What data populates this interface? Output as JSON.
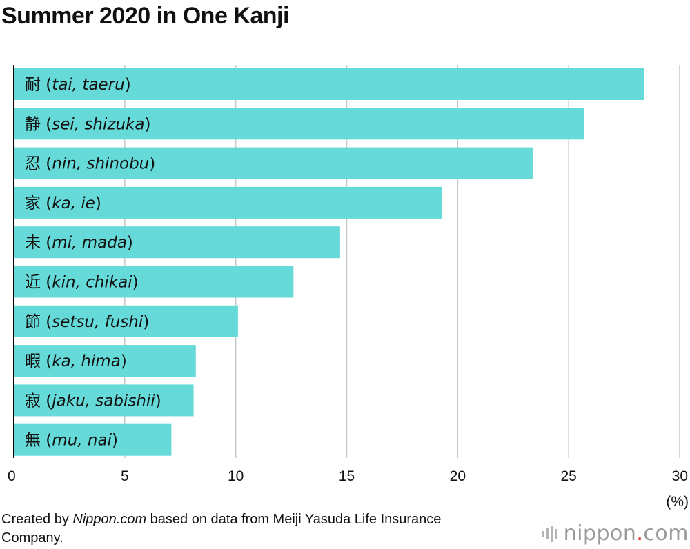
{
  "title": "Summer 2020 in One Kanji",
  "unit_label": "(%)",
  "source": {
    "prefix": "Created by ",
    "brand": "Nippon.com",
    "suffix": " based on data from Meiji Yasuda Life Insurance Company."
  },
  "logo": {
    "part1": "nippon",
    "dot": ".",
    "part2": "com"
  },
  "colors": {
    "bar": "#66d9d9",
    "grid": "#c8c8c8",
    "axis": "#000000",
    "logo_dot": "#e2231a",
    "logo_text": "#9a9a9a"
  },
  "chart_data": {
    "type": "bar",
    "orientation": "horizontal",
    "title": "Summer 2020 in One Kanji",
    "xlabel": "(%)",
    "ylabel": "",
    "xlim": [
      0,
      30
    ],
    "xticks": [
      0,
      5,
      10,
      15,
      20,
      25,
      30
    ],
    "grid": true,
    "categories": [
      {
        "kanji": "耐",
        "reading": "tai, taeru"
      },
      {
        "kanji": "静",
        "reading": "sei, shizuka"
      },
      {
        "kanji": "忍",
        "reading": "nin, shinobu"
      },
      {
        "kanji": "家",
        "reading": "ka, ie"
      },
      {
        "kanji": "未",
        "reading": "mi, mada"
      },
      {
        "kanji": "近",
        "reading": "kin, chikai"
      },
      {
        "kanji": "節",
        "reading": "setsu, fushi"
      },
      {
        "kanji": "暇",
        "reading": "ka, hima"
      },
      {
        "kanji": "寂",
        "reading": "jaku, sabishii"
      },
      {
        "kanji": "無",
        "reading": "mu, nai"
      }
    ],
    "values": [
      28.4,
      25.7,
      23.4,
      19.3,
      14.7,
      12.6,
      10.1,
      8.2,
      8.1,
      7.1
    ]
  }
}
